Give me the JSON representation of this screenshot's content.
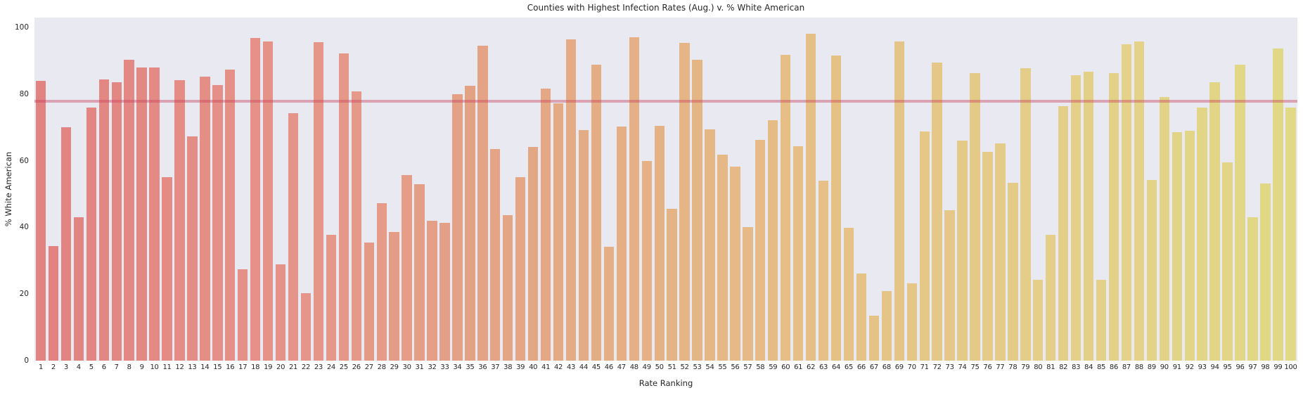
{
  "figure": {
    "title": "Counties with Highest Infection Rates (Aug.) v. % White American",
    "xlabel": "Rate Ranking",
    "ylabel": "% White American"
  },
  "chart_data": {
    "type": "bar",
    "title": "Counties with Highest Infection Rates (Aug.) v. % White American",
    "xlabel": "Rate Ranking",
    "ylabel": "% White American",
    "categories": [
      1,
      2,
      3,
      4,
      5,
      6,
      7,
      8,
      9,
      10,
      11,
      12,
      13,
      14,
      15,
      16,
      17,
      18,
      19,
      20,
      21,
      22,
      23,
      24,
      25,
      26,
      27,
      28,
      29,
      30,
      31,
      32,
      33,
      34,
      35,
      36,
      37,
      38,
      39,
      40,
      41,
      42,
      43,
      44,
      45,
      46,
      47,
      48,
      49,
      50,
      51,
      52,
      53,
      54,
      55,
      56,
      57,
      58,
      59,
      60,
      61,
      62,
      63,
      64,
      65,
      66,
      67,
      68,
      69,
      70,
      71,
      72,
      73,
      74,
      75,
      76,
      77,
      78,
      79,
      80,
      81,
      82,
      83,
      84,
      85,
      86,
      87,
      88,
      89,
      90,
      91,
      92,
      93,
      94,
      95,
      96,
      97,
      98,
      99,
      100
    ],
    "values": [
      84,
      34.5,
      70,
      43,
      76,
      84.5,
      83.5,
      90.3,
      88,
      88,
      55,
      84.3,
      67.4,
      85.3,
      82.8,
      87.3,
      27.5,
      96.8,
      95.8,
      29,
      74.3,
      20.2,
      95.7,
      37.8,
      92.2,
      80.8,
      35.5,
      47.3,
      38.6,
      55.7,
      53,
      41.9,
      41.4,
      80.1,
      82.6,
      94.6,
      63.6,
      43.7,
      55.1,
      64.1,
      81.6,
      77.3,
      96.4,
      69.2,
      88.8,
      34.2,
      70.3,
      97,
      60,
      70.4,
      45.5,
      95.3,
      90.3,
      69.5,
      61.8,
      58.3,
      40.2,
      66.3,
      72.2,
      91.8,
      64.3,
      98.2,
      54,
      91.6,
      39.8,
      26.2,
      13.5,
      20.8,
      95.9,
      23.2,
      68.9,
      89.4,
      45.1,
      66.1,
      86.3,
      62.6,
      65.2,
      53.5,
      87.9,
      24.3,
      37.7,
      76.4,
      85.6,
      86.7,
      24.3,
      86.4,
      95,
      95.9,
      54.2,
      79.2,
      68.7,
      69.1,
      76,
      83.6,
      59.5,
      88.9,
      43.1,
      53.2,
      93.7,
      75.9
    ],
    "yticks": [
      0,
      20,
      40,
      60,
      80,
      100
    ],
    "ylim": [
      0,
      103
    ],
    "grid": false,
    "legend": false,
    "reference_line": {
      "y": 77.8
    },
    "colors": {
      "figure_background": "#ffffff",
      "plot_background": "#e9e9f2",
      "reference_line": "rgba(197,66,94,0.42)",
      "bar_gradient_stops": [
        "#e28281",
        "#e59489",
        "#e4a884",
        "#e6be86",
        "#e4ce88",
        "#e1d985"
      ],
      "text": "#262626"
    }
  }
}
